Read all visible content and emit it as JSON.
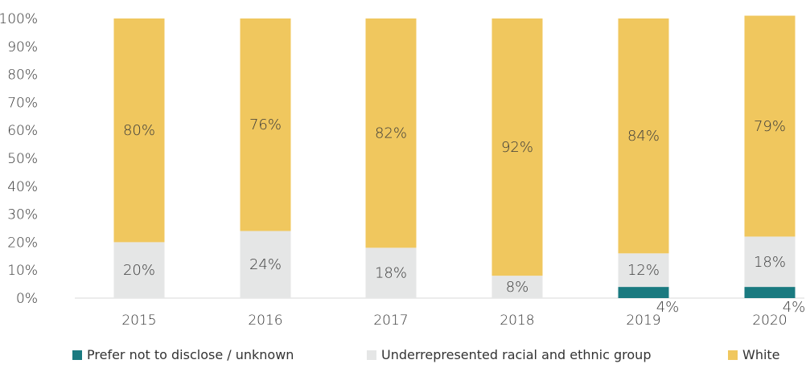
{
  "chart_data": {
    "type": "bar",
    "stacked": true,
    "categories": [
      "2015",
      "2016",
      "2017",
      "2018",
      "2019",
      "2020"
    ],
    "series": [
      {
        "name": "Prefer not to disclose / unknown",
        "color": "#1a7a80",
        "values": [
          0,
          0,
          0,
          0,
          4,
          4
        ],
        "labels": [
          "",
          "",
          "",
          "",
          "4%",
          "4%"
        ]
      },
      {
        "name": "Underrepresented racial and ethnic group",
        "color": "#e5e6e6",
        "values": [
          20,
          24,
          18,
          8,
          12,
          18
        ],
        "labels": [
          "20%",
          "24%",
          "18%",
          "8%",
          "12%",
          "18%"
        ]
      },
      {
        "name": "White",
        "color": "#f0c75e",
        "values": [
          80,
          76,
          82,
          92,
          84,
          79
        ],
        "labels": [
          "80%",
          "76%",
          "82%",
          "92%",
          "84%",
          "79%"
        ]
      }
    ],
    "ylim": [
      0,
      100
    ],
    "yticks": [
      "0%",
      "10%",
      "20%",
      "30%",
      "40%",
      "50%",
      "60%",
      "70%",
      "80%",
      "90%",
      "100%"
    ],
    "grid": false,
    "legend_position": "bottom"
  }
}
